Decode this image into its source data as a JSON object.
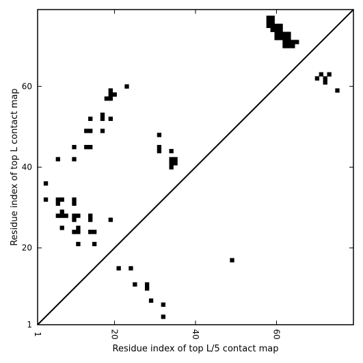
{
  "chart_data": {
    "type": "heatmap",
    "title": "",
    "xlabel": "Residue index of top L/5 contact map",
    "ylabel": "Residue index of top L contact map",
    "xlim": [
      1,
      79
    ],
    "ylim": [
      1,
      79
    ],
    "x_ticks": [
      {
        "value": 1,
        "label": "1"
      },
      {
        "value": 20,
        "label": "20"
      },
      {
        "value": 40,
        "label": "40"
      },
      {
        "value": 60,
        "label": "60"
      }
    ],
    "y_ticks": [
      {
        "value": 1,
        "label": "1"
      },
      {
        "value": 20,
        "label": "20"
      },
      {
        "value": 40,
        "label": "40"
      },
      {
        "value": 60,
        "label": "60"
      }
    ],
    "grid": false,
    "diagonal_line": true,
    "cell_color": "#000000",
    "upper_contacts": [
      [
        3,
        36
      ],
      [
        3,
        32
      ],
      [
        6,
        42
      ],
      [
        6,
        32
      ],
      [
        6,
        31
      ],
      [
        7,
        32
      ],
      [
        6,
        28
      ],
      [
        7,
        28
      ],
      [
        8,
        28
      ],
      [
        7,
        29
      ],
      [
        7,
        25
      ],
      [
        10,
        45
      ],
      [
        10,
        42
      ],
      [
        10,
        32
      ],
      [
        10,
        31
      ],
      [
        10,
        28
      ],
      [
        11,
        28
      ],
      [
        10,
        27
      ],
      [
        10,
        24
      ],
      [
        11,
        24
      ],
      [
        11,
        25
      ],
      [
        11,
        21
      ],
      [
        13,
        49
      ],
      [
        14,
        49
      ],
      [
        13,
        45
      ],
      [
        14,
        45
      ],
      [
        14,
        52
      ],
      [
        14,
        28
      ],
      [
        14,
        27
      ],
      [
        14,
        24
      ],
      [
        15,
        24
      ],
      [
        15,
        21
      ],
      [
        17,
        53
      ],
      [
        17,
        52
      ],
      [
        17,
        49
      ],
      [
        18,
        57
      ],
      [
        19,
        57
      ],
      [
        19,
        58
      ],
      [
        19,
        59
      ],
      [
        20,
        58
      ],
      [
        19,
        52
      ],
      [
        19,
        27
      ],
      [
        23,
        60
      ],
      [
        31,
        48
      ],
      [
        31,
        45
      ],
      [
        31,
        44
      ],
      [
        34,
        44
      ],
      [
        34,
        42
      ],
      [
        35,
        42
      ],
      [
        34,
        41
      ],
      [
        35,
        41
      ],
      [
        34,
        40
      ],
      [
        58,
        77
      ],
      [
        59,
        77
      ],
      [
        58,
        76
      ],
      [
        59,
        76
      ],
      [
        58,
        75
      ],
      [
        59,
        75
      ],
      [
        60,
        75
      ],
      [
        61,
        75
      ],
      [
        59,
        74
      ],
      [
        60,
        74
      ],
      [
        61,
        74
      ],
      [
        60,
        73
      ],
      [
        61,
        73
      ],
      [
        62,
        73
      ],
      [
        63,
        73
      ],
      [
        60,
        72
      ],
      [
        61,
        72
      ],
      [
        62,
        72
      ],
      [
        63,
        72
      ],
      [
        62,
        71
      ],
      [
        63,
        71
      ],
      [
        64,
        71
      ],
      [
        65,
        71
      ],
      [
        62,
        70
      ],
      [
        63,
        70
      ],
      [
        64,
        70
      ],
      [
        70,
        62
      ],
      [
        71,
        63
      ],
      [
        72,
        62
      ],
      [
        72,
        61
      ],
      [
        73,
        63
      ],
      [
        75,
        59
      ]
    ],
    "lower_contacts": [
      [
        21,
        15
      ],
      [
        24,
        15
      ],
      [
        25,
        11
      ],
      [
        28,
        11
      ],
      [
        28,
        10
      ],
      [
        29,
        7
      ],
      [
        32,
        6
      ],
      [
        32,
        3
      ],
      [
        49,
        17
      ]
    ]
  }
}
